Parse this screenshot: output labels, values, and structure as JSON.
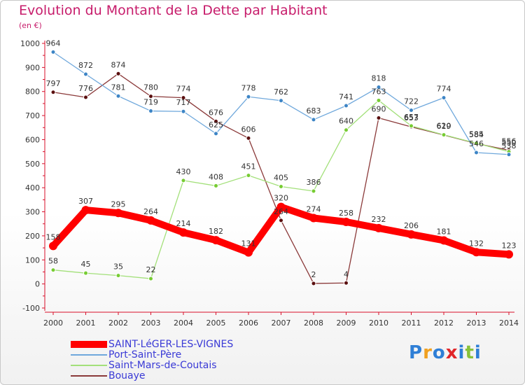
{
  "chart_data": {
    "type": "line",
    "title": "Evolution du Montant de la Dette par Habitant",
    "subtitle": "(en €)",
    "x": [
      "2000",
      "2001",
      "2002",
      "2003",
      "2004",
      "2005",
      "2006",
      "2007",
      "2008",
      "2009",
      "2010",
      "2011",
      "2012",
      "2013",
      "2014"
    ],
    "ylim": [
      -100,
      1000
    ],
    "yticks": [
      -100,
      0,
      100,
      200,
      300,
      400,
      500,
      600,
      700,
      800,
      900,
      1000
    ],
    "grid": false,
    "legend_position": "bottom-left",
    "series": [
      {
        "name": "SAINT-LéGER-LES-VIGNES",
        "color": "#ff0000",
        "marker_color": "#ff0000",
        "values": [
          158,
          307,
          295,
          264,
          214,
          182,
          131,
          320,
          274,
          258,
          232,
          206,
          181,
          132,
          123
        ]
      },
      {
        "name": "Port-Saint-Père",
        "color": "#6fa8dc",
        "marker_color": "#3d85c6",
        "values": [
          964,
          872,
          781,
          719,
          717,
          625,
          778,
          762,
          683,
          741,
          818,
          722,
          774,
          546,
          538
        ]
      },
      {
        "name": "Saint-Mars-de-Coutais",
        "color": "#a3e07a",
        "marker_color": "#77cc33",
        "values": [
          58,
          45,
          35,
          22,
          430,
          408,
          451,
          405,
          386,
          640,
          763,
          657,
          620,
          585,
          550
        ]
      },
      {
        "name": "Bouaye",
        "color": "#8b3a3a",
        "marker_color": "#5a0f0f",
        "values": [
          797,
          776,
          874,
          780,
          774,
          676,
          606,
          264,
          2,
          4,
          690,
          653,
          619,
          584,
          556
        ]
      }
    ]
  },
  "branding": {
    "logo_letters": [
      {
        "text": "P",
        "color": "#2f7fd6"
      },
      {
        "text": "r",
        "color": "#f0a020"
      },
      {
        "text": "o",
        "color": "#2f7fd6"
      },
      {
        "text": "x",
        "color": "#e0262a"
      },
      {
        "text": "i",
        "color": "#2f7fd6"
      },
      {
        "text": "t",
        "color": "#88c23a"
      },
      {
        "text": "i",
        "color": "#2f7fd6"
      }
    ]
  }
}
